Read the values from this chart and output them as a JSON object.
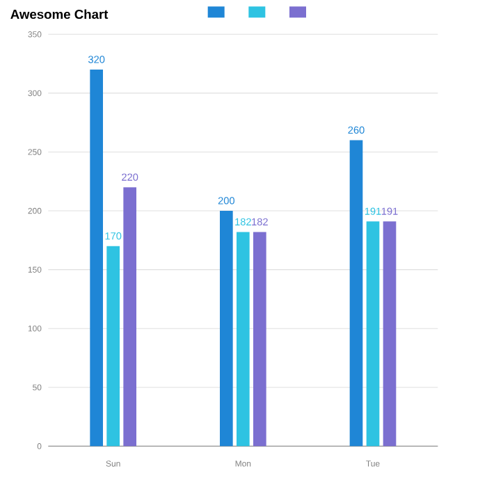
{
  "chart_data": {
    "type": "bar",
    "title": "Awesome Chart",
    "categories": [
      "Sun",
      "Mon",
      "Tue"
    ],
    "series": [
      {
        "color": "#1f86d6",
        "values": [
          320,
          200,
          260
        ]
      },
      {
        "color": "#2ec3e2",
        "values": [
          170,
          182,
          191
        ]
      },
      {
        "color": "#7b6fd0",
        "values": [
          220,
          182,
          191
        ]
      }
    ],
    "ylim": [
      0,
      350
    ],
    "yticks": [
      0,
      50,
      100,
      150,
      200,
      250,
      300,
      350
    ],
    "grid": "y",
    "data_labels": true
  }
}
